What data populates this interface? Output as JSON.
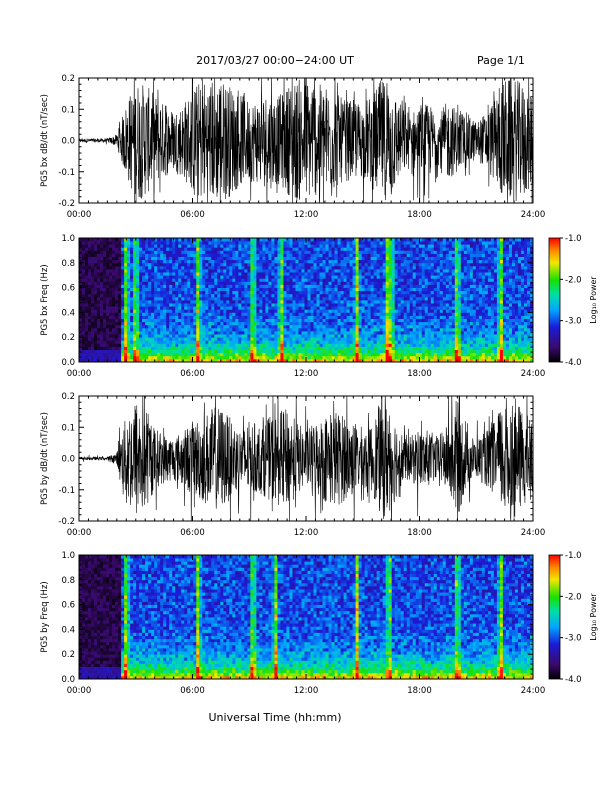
{
  "header": {
    "title": "2017/03/27  00:00−24:00 UT",
    "page": "Page 1/1"
  },
  "footer": {
    "xlabel": "Universal Time (hh:mm)"
  },
  "colorbar": {
    "label": "Log₁₀ Power",
    "ticks": [
      "-1.0",
      "-2.0",
      "-3.0",
      "-4.0"
    ],
    "range": [
      -4.0,
      -1.0
    ]
  },
  "chart_data": [
    {
      "type": "line",
      "panel": "bx-waveform",
      "ylabel": "PG5 bx dB/dt (nT/sec)",
      "xlim": [
        "00:00",
        "24:00"
      ],
      "ylim": [
        -0.2,
        0.2
      ],
      "x_ticks": [
        "00:00",
        "06:00",
        "12:00",
        "18:00",
        "24:00"
      ],
      "y_ticks": [
        "-0.2",
        "-0.1",
        "0.0",
        "0.1",
        "0.2"
      ],
      "x_hours": [
        0,
        0.5,
        1,
        1.5,
        2,
        2.5,
        3,
        3.5,
        4,
        4.5,
        5,
        5.5,
        6,
        6.5,
        7,
        7.5,
        8,
        8.5,
        9,
        9.5,
        10,
        10.5,
        11,
        11.5,
        12,
        12.5,
        13,
        13.5,
        14,
        14.5,
        15,
        15.5,
        16,
        16.5,
        17,
        17.5,
        18,
        18.5,
        19,
        19.5,
        20,
        20.5,
        21,
        21.5,
        22,
        22.5,
        23,
        23.5,
        24
      ],
      "amplitude": [
        0.006,
        0.006,
        0.006,
        0.006,
        0.02,
        0.12,
        0.2,
        0.18,
        0.15,
        0.12,
        0.1,
        0.12,
        0.17,
        0.2,
        0.2,
        0.2,
        0.18,
        0.15,
        0.13,
        0.14,
        0.16,
        0.14,
        0.17,
        0.2,
        0.2,
        0.18,
        0.18,
        0.16,
        0.13,
        0.13,
        0.12,
        0.15,
        0.2,
        0.18,
        0.12,
        0.09,
        0.11,
        0.12,
        0.08,
        0.13,
        0.1,
        0.09,
        0.06,
        0.09,
        0.14,
        0.2,
        0.2,
        0.18,
        0.15
      ]
    },
    {
      "type": "heatmap",
      "panel": "bx-spectrogram",
      "ylabel": "PG5 bx Freq (Hz)",
      "xlim": [
        "00:00",
        "24:00"
      ],
      "ylim": [
        0.0,
        1.0
      ],
      "x_ticks": [
        "00:00",
        "06:00",
        "12:00",
        "18:00",
        "24:00"
      ],
      "y_ticks": [
        "0.0",
        "0.2",
        "0.4",
        "0.6",
        "0.8",
        "1.0"
      ],
      "colorbar_range": [
        -4.0,
        -1.0
      ],
      "low_freq_enhancement_hours": [
        [
          2.2,
          24.0
        ]
      ],
      "bright_vertical_streaks_hours": [
        2.5,
        3.0,
        6.3,
        9.2,
        10.7,
        14.7,
        16.3,
        16.5,
        20.0,
        22.3
      ]
    },
    {
      "type": "line",
      "panel": "by-waveform",
      "ylabel": "PG5 by dB/dt (nT/sec)",
      "xlim": [
        "00:00",
        "24:00"
      ],
      "ylim": [
        -0.2,
        0.2
      ],
      "x_ticks": [
        "00:00",
        "06:00",
        "12:00",
        "18:00",
        "24:00"
      ],
      "y_ticks": [
        "-0.2",
        "-0.1",
        "0.0",
        "0.1",
        "0.2"
      ],
      "x_hours": [
        0,
        0.5,
        1,
        1.5,
        2,
        2.5,
        3,
        3.5,
        4,
        4.5,
        5,
        5.5,
        6,
        6.5,
        7,
        7.5,
        8,
        8.5,
        9,
        9.5,
        10,
        10.5,
        11,
        11.5,
        12,
        12.5,
        13,
        13.5,
        14,
        14.5,
        15,
        15.5,
        16,
        16.5,
        17,
        17.5,
        18,
        18.5,
        19,
        19.5,
        20,
        20.5,
        21,
        21.5,
        22,
        22.5,
        23,
        23.5,
        24
      ],
      "amplitude": [
        0.005,
        0.005,
        0.005,
        0.005,
        0.02,
        0.14,
        0.2,
        0.17,
        0.1,
        0.08,
        0.07,
        0.09,
        0.12,
        0.14,
        0.16,
        0.17,
        0.13,
        0.1,
        0.12,
        0.11,
        0.13,
        0.15,
        0.16,
        0.12,
        0.09,
        0.12,
        0.14,
        0.16,
        0.14,
        0.12,
        0.1,
        0.11,
        0.2,
        0.17,
        0.09,
        0.07,
        0.1,
        0.09,
        0.07,
        0.11,
        0.2,
        0.09,
        0.06,
        0.09,
        0.12,
        0.2,
        0.2,
        0.15,
        0.13
      ]
    },
    {
      "type": "heatmap",
      "panel": "by-spectrogram",
      "ylabel": "PG5 by Freq (Hz)",
      "xlim": [
        "00:00",
        "24:00"
      ],
      "ylim": [
        0.0,
        1.0
      ],
      "x_ticks": [
        "00:00",
        "06:00",
        "12:00",
        "18:00",
        "24:00"
      ],
      "y_ticks": [
        "0.0",
        "0.2",
        "0.4",
        "0.6",
        "0.8",
        "1.0"
      ],
      "colorbar_range": [
        -4.0,
        -1.0
      ],
      "low_freq_enhancement_hours": [
        [
          2.2,
          24.0
        ]
      ],
      "bright_vertical_streaks_hours": [
        2.5,
        6.3,
        9.2,
        10.4,
        14.7,
        16.4,
        20.0,
        22.3
      ]
    }
  ]
}
